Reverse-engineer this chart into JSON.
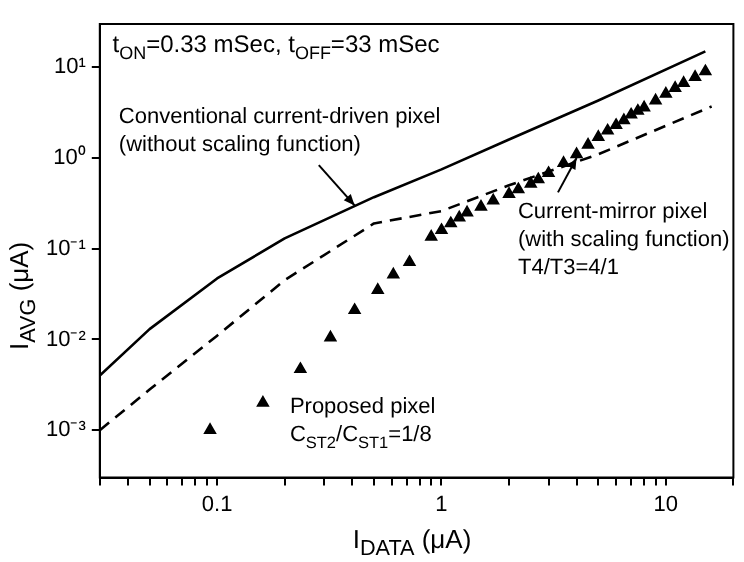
{
  "chart_data": {
    "type": "line",
    "title": "t$_{ON}$=0.33 mSec, t$_{OFF}$=33 mSec",
    "xlabel": "I$_{DATA}$ (μA)",
    "ylabel": "I$_{AVG}$ (μA)",
    "log": "xy",
    "grid": false,
    "legend": false,
    "xlim": [
      0.03,
      20
    ],
    "ylim": [
      0.0003,
      30
    ],
    "xticks": [
      {
        "value": 0.03,
        "label": null
      },
      {
        "value": 0.04,
        "label": null
      },
      {
        "value": 0.05,
        "label": null
      },
      {
        "value": 0.06,
        "label": null
      },
      {
        "value": 0.07,
        "label": null
      },
      {
        "value": 0.08,
        "label": null
      },
      {
        "value": 0.09,
        "label": null
      },
      0.1,
      {
        "value": 0.2,
        "label": null
      },
      {
        "value": 0.3,
        "label": null
      },
      {
        "value": 0.4,
        "label": null
      },
      {
        "value": 0.5,
        "label": null
      },
      {
        "value": 0.6,
        "label": null
      },
      {
        "value": 0.7,
        "label": null
      },
      {
        "value": 0.8,
        "label": null
      },
      {
        "value": 0.9,
        "label": null
      },
      1,
      {
        "value": 2,
        "label": null
      },
      {
        "value": 3,
        "label": null
      },
      {
        "value": 4,
        "label": null
      },
      {
        "value": 5,
        "label": null
      },
      {
        "value": 6,
        "label": null
      },
      {
        "value": 7,
        "label": null
      },
      {
        "value": 8,
        "label": null
      },
      {
        "value": 9,
        "label": null
      },
      10,
      {
        "value": 20,
        "label": null
      }
    ],
    "yticks": [
      {
        "value": 0.001,
        "label": "10⁻³"
      },
      {
        "value": 0.01,
        "label": "10⁻²"
      },
      {
        "value": 0.1,
        "label": "10⁻¹"
      },
      {
        "value": 1,
        "label": "10⁰"
      },
      {
        "value": 10,
        "label": "10¹"
      }
    ],
    "series": [
      {
        "type": "line",
        "color": "#000000",
        "line_style": "solid",
        "marker": "none",
        "x": [
          0.03,
          0.05,
          0.1,
          0.2,
          0.5,
          1,
          2,
          5,
          15
        ],
        "values": [
          0.004,
          0.013,
          0.047,
          0.13,
          0.37,
          0.75,
          1.6,
          4.3,
          15
        ]
      },
      {
        "type": "line",
        "color": "#000000",
        "line_style": "dashed",
        "marker": "none",
        "x": [
          0.03,
          0.05,
          0.1,
          0.2,
          0.5,
          1,
          2,
          5,
          16
        ],
        "values": [
          0.001,
          0.0028,
          0.011,
          0.045,
          0.19,
          0.26,
          0.5,
          1.1,
          3.7
        ]
      },
      {
        "type": "scatter",
        "color": "#000000",
        "marker": "triangle",
        "x": [
          0.093,
          0.16,
          0.235,
          0.32,
          0.41,
          0.52,
          0.61,
          0.72,
          0.9,
          1,
          1.1,
          1.2,
          1.3,
          1.5,
          1.7,
          2,
          2.2,
          2.5,
          2.7,
          3,
          3.5,
          4,
          4.5,
          5,
          5.5,
          6,
          6.5,
          7,
          7.5,
          8,
          9,
          10,
          11,
          12,
          13.5,
          15
        ],
        "values": [
          0.001,
          0.002,
          0.0047,
          0.0105,
          0.021,
          0.035,
          0.052,
          0.071,
          0.135,
          0.16,
          0.19,
          0.22,
          0.25,
          0.29,
          0.34,
          0.4,
          0.45,
          0.52,
          0.58,
          0.68,
          0.88,
          1.1,
          1.4,
          1.7,
          2.0,
          2.3,
          2.6,
          3.0,
          3.3,
          3.6,
          4.3,
          5.1,
          5.9,
          6.7,
          7.8,
          9
        ]
      }
    ],
    "annotations": [
      {
        "text": "Conventional current-driven pixel\n(without scaling function)",
        "x": 0.41,
        "y": 0.3
      },
      {
        "text": "Current-mirror pixel\n(with scaling function)\nT4/T3=4/1",
        "x": 4,
        "y": 1.0
      },
      "Proposed pixel\nC$_{ST2}$/C$_{ST1}$=1/8"
    ]
  }
}
